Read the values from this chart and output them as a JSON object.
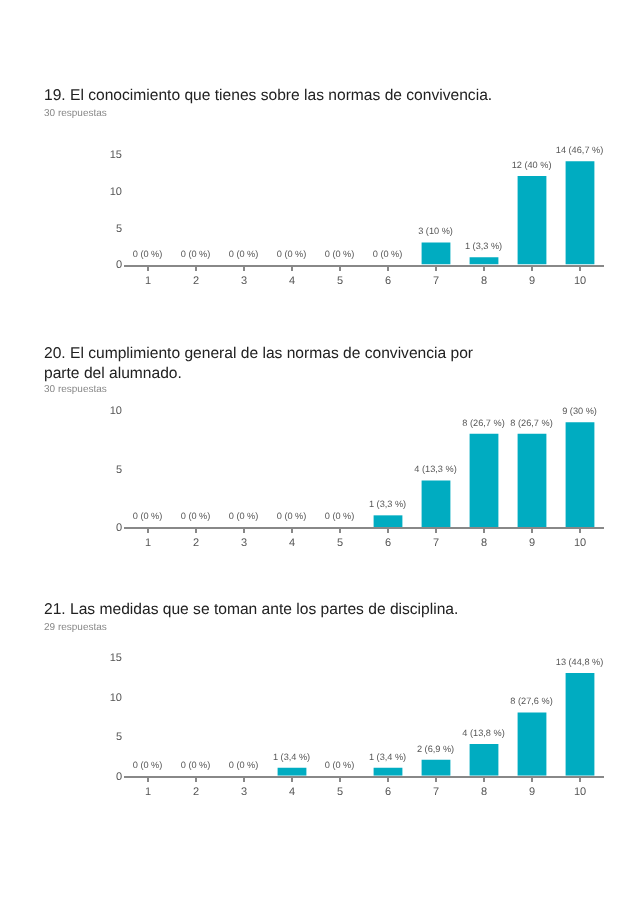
{
  "chart_data": [
    {
      "type": "bar",
      "title": "19. El conocimiento que tienes sobre las normas de convivencia.",
      "subtitle": "30 respuestas",
      "categories": [
        "1",
        "2",
        "3",
        "4",
        "5",
        "6",
        "7",
        "8",
        "9",
        "10"
      ],
      "values": [
        0,
        0,
        0,
        0,
        0,
        0,
        3,
        1,
        12,
        14
      ],
      "value_labels": [
        "0 (0 %)",
        "0 (0 %)",
        "0 (0 %)",
        "0 (0 %)",
        "0 (0 %)",
        "0 (0 %)",
        "3 (10 %)",
        "1 (3,3 %)",
        "12 (40 %)",
        "14 (46,7 %)"
      ],
      "color": "#00acc1",
      "ylim": [
        0,
        15
      ],
      "yticks": [
        0,
        5,
        10,
        15
      ]
    },
    {
      "type": "bar",
      "title": "20. El cumplimiento general de las normas de convivencia por parte del alumnado.",
      "subtitle": "30 respuestas",
      "categories": [
        "1",
        "2",
        "3",
        "4",
        "5",
        "6",
        "7",
        "8",
        "9",
        "10"
      ],
      "values": [
        0,
        0,
        0,
        0,
        0,
        1,
        4,
        8,
        8,
        9
      ],
      "value_labels": [
        "0 (0 %)",
        "0 (0 %)",
        "0 (0 %)",
        "0 (0 %)",
        "0 (0 %)",
        "1 (3,3 %)",
        "4 (13,3 %)",
        "8 (26,7 %)",
        "8 (26,7 %)",
        "9 (30 %)"
      ],
      "color": "#00acc1",
      "ylim": [
        0,
        10
      ],
      "yticks": [
        0,
        5,
        10
      ]
    },
    {
      "type": "bar",
      "title": "21. Las medidas que se toman ante los partes de disciplina.",
      "subtitle": "29 respuestas",
      "categories": [
        "1",
        "2",
        "3",
        "4",
        "5",
        "6",
        "7",
        "8",
        "9",
        "10"
      ],
      "values": [
        0,
        0,
        0,
        1,
        0,
        1,
        2,
        4,
        8,
        13
      ],
      "value_labels": [
        "0 (0 %)",
        "0 (0 %)",
        "0 (0 %)",
        "1 (3,4 %)",
        "0 (0 %)",
        "1 (3,4 %)",
        "2 (6,9 %)",
        "4 (13,8 %)",
        "8 (27,6 %)",
        "13 (44,8 %)"
      ],
      "color": "#00acc1",
      "ylim": [
        0,
        15
      ],
      "yticks": [
        0,
        5,
        10,
        15
      ]
    }
  ]
}
